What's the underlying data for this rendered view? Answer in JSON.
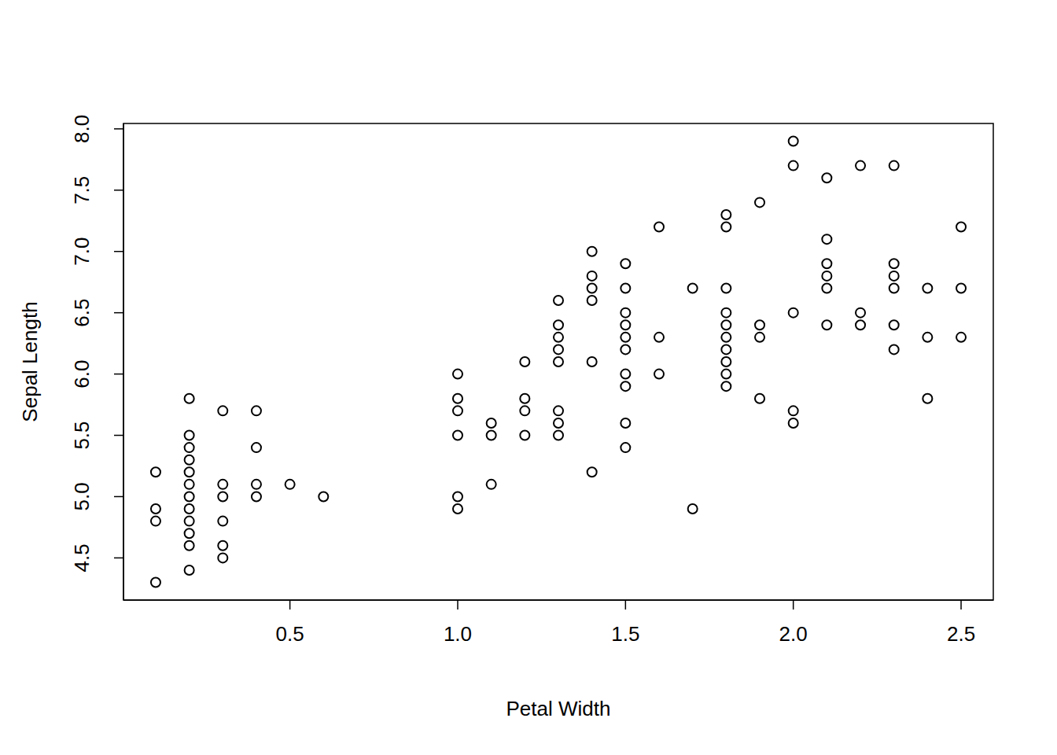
{
  "chart_data": {
    "type": "scatter",
    "x_label": "Petal Width",
    "y_label": "Sepal Length",
    "marker": "open circle",
    "color": "#000000",
    "grid": false,
    "x": [
      0.1,
      0.1,
      0.1,
      0.1,
      0.2,
      0.2,
      0.2,
      0.2,
      0.2,
      0.2,
      0.2,
      0.2,
      0.2,
      0.2,
      0.2,
      0.2,
      0.3,
      0.3,
      0.3,
      0.3,
      0.3,
      0.3,
      0.4,
      0.4,
      0.4,
      0.4,
      0.5,
      0.6,
      1.0,
      1.0,
      1.0,
      1.0,
      1.0,
      1.0,
      1.1,
      1.1,
      1.1,
      1.2,
      1.2,
      1.2,
      1.2,
      1.3,
      1.3,
      1.3,
      1.3,
      1.3,
      1.3,
      1.3,
      1.3,
      1.4,
      1.4,
      1.4,
      1.4,
      1.4,
      1.4,
      1.5,
      1.5,
      1.5,
      1.5,
      1.5,
      1.5,
      1.5,
      1.5,
      1.5,
      1.5,
      1.6,
      1.6,
      1.6,
      1.7,
      1.7,
      1.8,
      1.8,
      1.8,
      1.8,
      1.8,
      1.8,
      1.8,
      1.8,
      1.8,
      1.8,
      1.9,
      1.9,
      1.9,
      1.9,
      2.0,
      2.0,
      2.0,
      2.0,
      2.0,
      2.1,
      2.1,
      2.1,
      2.1,
      2.1,
      2.1,
      2.2,
      2.2,
      2.2,
      2.3,
      2.3,
      2.3,
      2.3,
      2.3,
      2.3,
      2.4,
      2.4,
      2.4,
      2.5,
      2.5,
      2.5
    ],
    "values": [
      5.2,
      4.9,
      4.8,
      4.3,
      5.8,
      5.5,
      5.4,
      5.3,
      5.2,
      5.1,
      5.0,
      4.9,
      4.8,
      4.7,
      4.6,
      4.4,
      5.7,
      5.1,
      5.0,
      4.8,
      4.6,
      4.5,
      5.7,
      5.4,
      5.1,
      5.0,
      5.1,
      5.0,
      6.0,
      5.8,
      5.7,
      5.5,
      5.0,
      4.9,
      5.6,
      5.5,
      5.1,
      6.1,
      5.8,
      5.7,
      5.5,
      6.6,
      6.4,
      6.3,
      6.2,
      6.1,
      5.7,
      5.6,
      5.5,
      7.0,
      6.8,
      6.7,
      6.6,
      6.1,
      5.2,
      6.9,
      6.7,
      6.5,
      6.4,
      6.3,
      6.2,
      6.0,
      5.9,
      5.6,
      5.4,
      7.2,
      6.3,
      6.0,
      6.7,
      4.9,
      7.3,
      7.2,
      6.7,
      6.5,
      6.4,
      6.3,
      6.2,
      6.1,
      6.0,
      5.9,
      7.4,
      6.4,
      6.3,
      5.8,
      7.9,
      7.7,
      6.5,
      5.7,
      5.6,
      7.6,
      7.1,
      6.9,
      6.8,
      6.7,
      6.4,
      7.7,
      6.5,
      6.4,
      7.7,
      6.9,
      6.8,
      6.7,
      6.4,
      6.2,
      6.7,
      6.3,
      5.8,
      7.2,
      6.7,
      6.3
    ],
    "xlim": [
      0.004,
      2.596
    ],
    "xticks": [
      0.5,
      {
        "value": 1,
        "label": "1.0"
      },
      1.5,
      {
        "value": 2,
        "label": "2.0"
      },
      2.5
    ],
    "ylim": [
      4.156,
      8.044
    ],
    "yticks": [
      4.5,
      {
        "value": 5,
        "label": "5.0"
      },
      5.5,
      {
        "value": 6,
        "label": "6.0"
      },
      6.5,
      {
        "value": 7,
        "label": "7.0"
      },
      7.5,
      {
        "value": 8,
        "label": "8.0"
      }
    ]
  }
}
